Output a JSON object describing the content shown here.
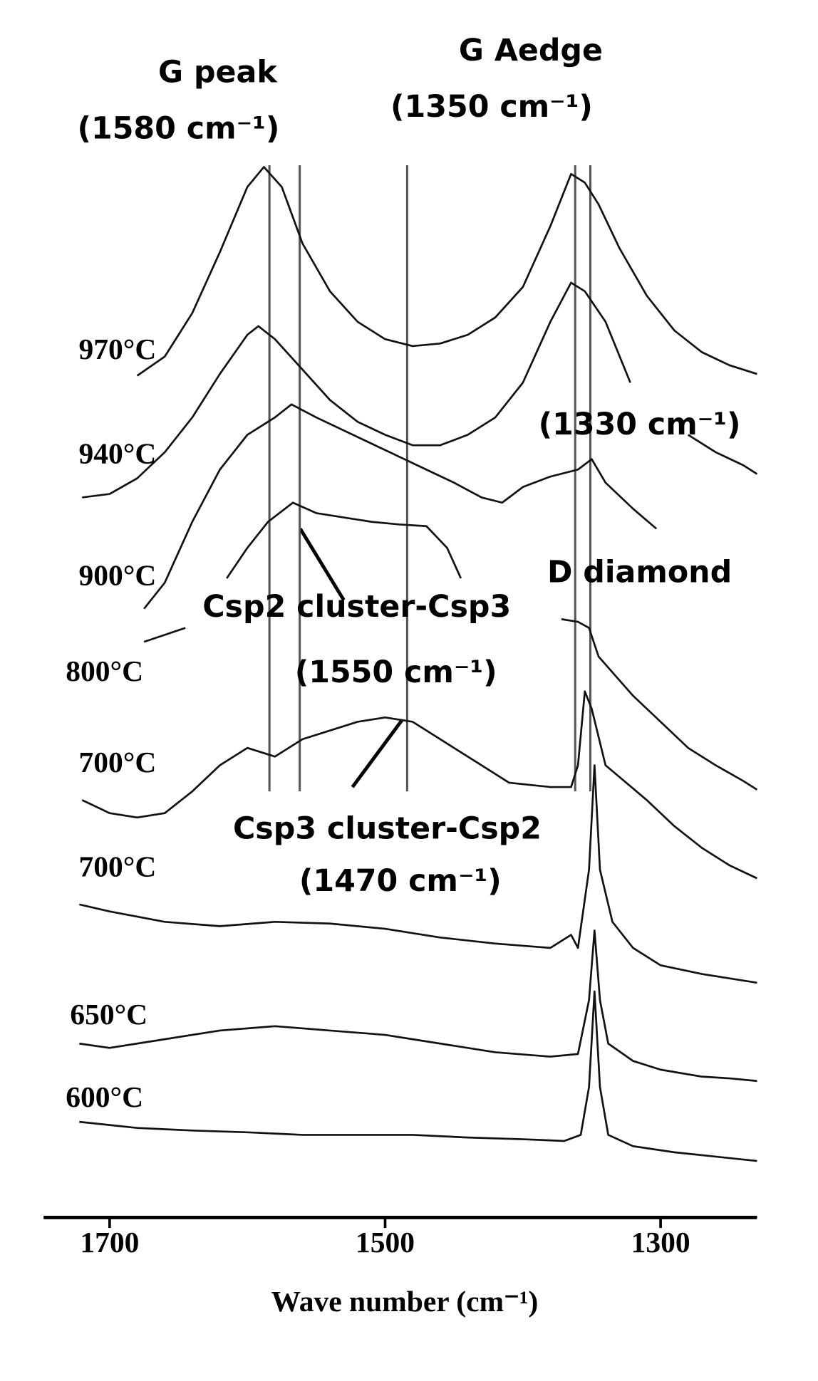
{
  "chart_data": {
    "type": "line",
    "xlabel": "Wave number (cm⁻¹)",
    "xlim": [
      1740,
      1230
    ],
    "xticks": [
      1700,
      1500,
      1300
    ],
    "ylim": [
      0,
      1210
    ],
    "reference_lines": [
      1584,
      1562,
      1484,
      1362,
      1351
    ],
    "annotations": [
      "G peak",
      "(1580 cm⁻¹)",
      "G Aedge",
      "(1350 cm⁻¹)",
      "(1330 cm⁻¹)",
      "D diamond",
      "Csp2 cluster-Csp3",
      "(1550 cm⁻¹)",
      "Csp3 cluster-Csp2",
      "(1470 cm⁻¹)"
    ],
    "series": [
      {
        "name": "970°C",
        "color": "#111111",
        "x": [
          1680,
          1660,
          1640,
          1620,
          1600,
          1588,
          1575,
          1560,
          1540,
          1520,
          1500,
          1480,
          1460,
          1440,
          1420,
          1400,
          1380,
          1365,
          1355,
          1345,
          1330,
          1310,
          1290,
          1270,
          1250,
          1230
        ],
        "values": [
          958,
          980,
          1030,
          1100,
          1175,
          1198,
          1175,
          1110,
          1055,
          1020,
          1000,
          992,
          995,
          1005,
          1025,
          1060,
          1130,
          1190,
          1180,
          1155,
          1105,
          1050,
          1010,
          985,
          970,
          960
        ]
      },
      {
        "name": "940°C",
        "color": "#111111",
        "x": [
          1720,
          1700,
          1680,
          1660,
          1640,
          1620,
          1600,
          1592,
          1580,
          1560,
          1540,
          1520,
          1500,
          1480,
          1460,
          1440,
          1420,
          1400,
          1380,
          1365,
          1355,
          1340,
          1322,
          1300,
          1280,
          1260,
          1240,
          1230
        ],
        "values": [
          818,
          822,
          840,
          870,
          910,
          960,
          1005,
          1015,
          1000,
          965,
          930,
          905,
          890,
          878,
          878,
          890,
          910,
          950,
          1020,
          1065,
          1055,
          1020,
          950,
          null,
          890,
          870,
          855,
          845
        ]
      },
      {
        "name": "900°C",
        "color": "#111111",
        "x": [
          1675,
          1660,
          1640,
          1620,
          1600,
          1580,
          1568,
          1550,
          1530,
          1510,
          1490,
          1470,
          1450,
          1430,
          1415,
          1400,
          1380,
          1360,
          1350,
          1340,
          1320,
          1303
        ],
        "values": [
          690,
          720,
          790,
          850,
          890,
          910,
          925,
          910,
          895,
          880,
          865,
          850,
          835,
          818,
          812,
          830,
          842,
          850,
          862,
          835,
          805,
          782
        ]
      },
      {
        "name": "800°C",
        "color": "#111111",
        "x": [
          1675,
          1660,
          1645,
          1630,
          1615,
          1600,
          1585,
          1567,
          1550,
          1530,
          1510,
          1490,
          1470,
          1455,
          1445,
          1420,
          1372,
          1360,
          1352,
          1345,
          1320,
          1300,
          1280,
          1260,
          1240,
          1230
        ],
        "values": [
          652,
          660,
          668,
          null,
          725,
          760,
          790,
          812,
          800,
          795,
          790,
          787,
          785,
          760,
          725,
          null,
          678,
          675,
          668,
          635,
          590,
          560,
          530,
          510,
          492,
          482
        ]
      },
      {
        "name": "700°C",
        "color": "#111111",
        "x": [
          1720,
          1700,
          1680,
          1660,
          1640,
          1620,
          1600,
          1580,
          1560,
          1540,
          1520,
          1500,
          1480,
          1470,
          1450,
          1430,
          1410,
          1380,
          1365,
          1360,
          1355,
          1350,
          1340,
          1310,
          1290,
          1270,
          1250,
          1230
        ],
        "values": [
          470,
          455,
          450,
          455,
          480,
          510,
          530,
          520,
          540,
          550,
          560,
          565,
          560,
          550,
          530,
          510,
          490,
          485,
          485,
          510,
          595,
          575,
          510,
          470,
          440,
          415,
          395,
          380
        ]
      },
      {
        "name": "700°C",
        "color": "#111111",
        "x": [
          1722,
          1700,
          1660,
          1620,
          1580,
          1540,
          1500,
          1460,
          1420,
          1380,
          1365,
          1360,
          1352,
          1348,
          1344,
          1335,
          1320,
          1300,
          1270,
          1250,
          1230
        ],
        "values": [
          350,
          342,
          330,
          325,
          330,
          328,
          322,
          312,
          305,
          300,
          315,
          300,
          390,
          510,
          390,
          330,
          300,
          280,
          270,
          265,
          260
        ]
      },
      {
        "name": "650°C",
        "color": "#111111",
        "x": [
          1722,
          1700,
          1660,
          1620,
          1580,
          1540,
          1500,
          1460,
          1420,
          1380,
          1360,
          1352,
          1348,
          1344,
          1338,
          1320,
          1300,
          1270,
          1250,
          1230
        ],
        "values": [
          190,
          185,
          195,
          205,
          210,
          205,
          200,
          190,
          180,
          175,
          178,
          240,
          320,
          240,
          190,
          170,
          160,
          152,
          150,
          147
        ]
      },
      {
        "name": "600°C",
        "color": "#111111",
        "x": [
          1722,
          1680,
          1640,
          1600,
          1560,
          1520,
          1480,
          1440,
          1400,
          1370,
          1358,
          1352,
          1348,
          1344,
          1338,
          1320,
          1290,
          1260,
          1230
        ],
        "values": [
          100,
          93,
          90,
          88,
          85,
          85,
          85,
          82,
          80,
          78,
          85,
          140,
          250,
          140,
          85,
          72,
          65,
          60,
          55
        ]
      }
    ]
  }
}
